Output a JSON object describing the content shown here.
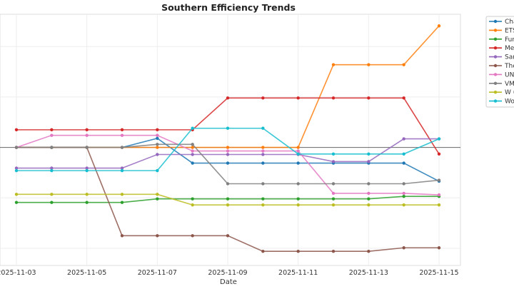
{
  "chart_data": {
    "type": "line",
    "title": "Southern Efficiency Trends",
    "xlabel": "Date",
    "ylabel": "",
    "x": [
      "2025-11-03",
      "2025-11-04",
      "2025-11-05",
      "2025-11-06",
      "2025-11-07",
      "2025-11-08",
      "2025-11-09",
      "2025-11-10",
      "2025-11-11",
      "2025-11-12",
      "2025-11-13",
      "2025-11-14",
      "2025-11-15"
    ],
    "xticks": [
      "2025-11-03",
      "2025-11-05",
      "2025-11-07",
      "2025-11-09",
      "2025-11-11",
      "2025-11-13",
      "2025-11-15"
    ],
    "ylim": [
      -23.4,
      26.4
    ],
    "grid": true,
    "zero_line": true,
    "legend_position": "outside-right",
    "series": [
      {
        "name": "Cha",
        "color": "#1f77b4",
        "values": [
          0,
          0,
          0,
          0,
          1.8,
          -3.1,
          -3.1,
          -3.1,
          -3.1,
          -3.1,
          -3.1,
          -3.1,
          -6.7
        ]
      },
      {
        "name": "ETS",
        "color": "#ff7f0e",
        "values": [
          0,
          0,
          0,
          0,
          0,
          0,
          0,
          0,
          0,
          16.4,
          16.4,
          16.4,
          24.1
        ]
      },
      {
        "name": "Fur",
        "color": "#2ca02c",
        "values": [
          -10.9,
          -10.9,
          -10.9,
          -10.9,
          -10.2,
          -10.2,
          -10.2,
          -10.2,
          -10.2,
          -10.2,
          -10.2,
          -9.7,
          -9.7
        ]
      },
      {
        "name": "Me",
        "color": "#d62728",
        "values": [
          3.5,
          3.5,
          3.5,
          3.5,
          3.5,
          3.5,
          9.8,
          9.8,
          9.8,
          9.8,
          9.8,
          9.8,
          -1.3
        ]
      },
      {
        "name": "Sar",
        "color": "#9467bd",
        "values": [
          -4.1,
          -4.1,
          -4.1,
          -4.1,
          -1.4,
          -1.4,
          -1.4,
          -1.4,
          -1.4,
          -2.8,
          -2.8,
          1.7,
          1.7
        ]
      },
      {
        "name": "The",
        "color": "#8c564b",
        "values": [
          0,
          0,
          0,
          -17.5,
          -17.5,
          -17.5,
          -17.5,
          -20.6,
          -20.6,
          -20.6,
          -20.6,
          -19.9,
          -19.9
        ]
      },
      {
        "name": "UN",
        "color": "#e377c2",
        "values": [
          0,
          2.4,
          2.4,
          2.4,
          2.4,
          -0.7,
          -0.7,
          -0.7,
          -0.7,
          -9.1,
          -9.1,
          -9.1,
          -9.4
        ]
      },
      {
        "name": "VM",
        "color": "#7f7f7f",
        "values": [
          0,
          0,
          0,
          0,
          0.6,
          0.6,
          -7.2,
          -7.2,
          -7.2,
          -7.2,
          -7.2,
          -7.2,
          -6.5
        ]
      },
      {
        "name": "W (",
        "color": "#bcbd22",
        "values": [
          -9.3,
          -9.3,
          -9.3,
          -9.3,
          -9.3,
          -11.4,
          -11.4,
          -11.4,
          -11.4,
          -11.4,
          -11.4,
          -11.4,
          -11.4
        ]
      },
      {
        "name": "Wo",
        "color": "#17becf",
        "values": [
          -4.6,
          -4.6,
          -4.6,
          -4.6,
          -4.6,
          3.8,
          3.8,
          3.8,
          -1.3,
          -1.3,
          -1.3,
          -1.3,
          1.7
        ]
      }
    ]
  }
}
